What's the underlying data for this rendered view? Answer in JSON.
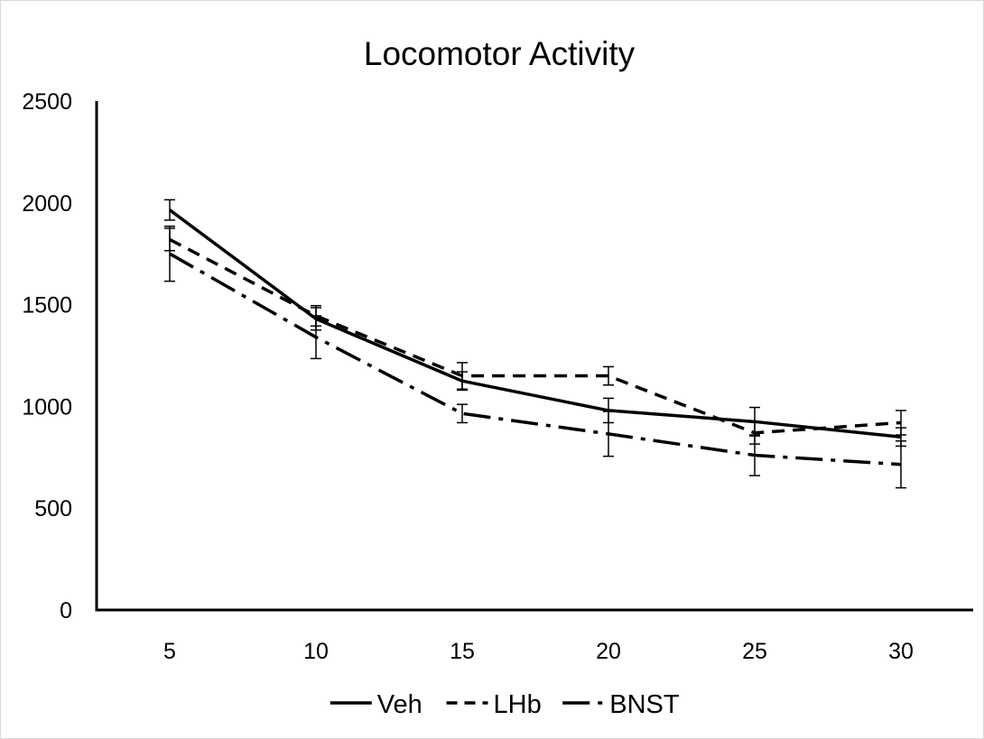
{
  "chart_data": {
    "type": "line",
    "title": "Locomotor Activity",
    "xlabel": "",
    "ylabel": "",
    "x": [
      5,
      10,
      15,
      20,
      25,
      30
    ],
    "ylim": [
      0,
      2500
    ],
    "yticks": [
      0,
      500,
      1000,
      1500,
      2000,
      2500
    ],
    "grid": false,
    "legend_position": "bottom",
    "series": [
      {
        "name": "Veh",
        "style": "solid",
        "color": "#000000",
        "values": [
          1965,
          1430,
          1125,
          980,
          925,
          850
        ],
        "errors": [
          50,
          55,
          45,
          60,
          70,
          45
        ]
      },
      {
        "name": "LHb",
        "style": "dashed",
        "color": "#000000",
        "values": [
          1820,
          1445,
          1150,
          1150,
          870,
          920
        ],
        "errors": [
          55,
          50,
          65,
          45,
          55,
          60
        ]
      },
      {
        "name": "BNST",
        "style": "dashdot",
        "color": "#000000",
        "values": [
          1750,
          1340,
          965,
          865,
          760,
          715
        ],
        "errors": [
          135,
          105,
          45,
          110,
          100,
          115
        ]
      }
    ]
  }
}
